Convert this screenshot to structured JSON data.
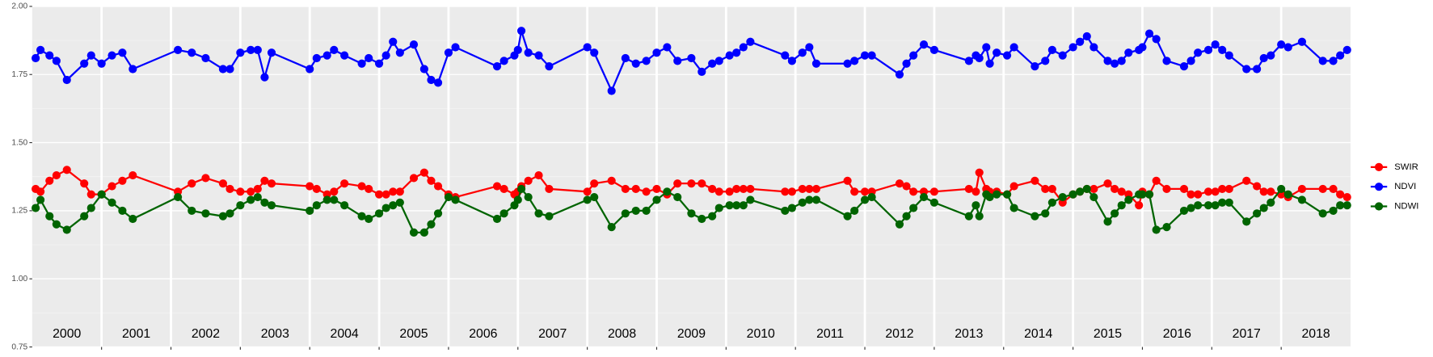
{
  "chart_data": {
    "type": "line",
    "xlim": [
      2000,
      2019
    ],
    "x_boundaries": [
      2001,
      2002,
      2003,
      2004,
      2005,
      2006,
      2007,
      2008,
      2009,
      2010,
      2011,
      2012,
      2013,
      2014,
      2015,
      2016,
      2017,
      2018
    ],
    "xticks": [
      {
        "value": 2000.5,
        "label": "2000"
      },
      {
        "value": 2001.5,
        "label": "2001"
      },
      {
        "value": 2002.5,
        "label": "2002"
      },
      {
        "value": 2003.5,
        "label": "2003"
      },
      {
        "value": 2004.5,
        "label": "2004"
      },
      {
        "value": 2005.5,
        "label": "2005"
      },
      {
        "value": 2006.5,
        "label": "2006"
      },
      {
        "value": 2007.5,
        "label": "2007"
      },
      {
        "value": 2008.5,
        "label": "2008"
      },
      {
        "value": 2009.5,
        "label": "2009"
      },
      {
        "value": 2010.5,
        "label": "2010"
      },
      {
        "value": 2011.5,
        "label": "2011"
      },
      {
        "value": 2012.5,
        "label": "2012"
      },
      {
        "value": 2013.5,
        "label": "2013"
      },
      {
        "value": 2014.5,
        "label": "2014"
      },
      {
        "value": 2015.5,
        "label": "2015"
      },
      {
        "value": 2016.5,
        "label": "2016"
      },
      {
        "value": 2017.5,
        "label": "2017"
      },
      {
        "value": 2018.5,
        "label": "2018"
      }
    ],
    "ylim": [
      0.75,
      2.0
    ],
    "yticks": [
      {
        "value": 0.75,
        "label": "0.75"
      },
      {
        "value": 1.0,
        "label": "1.00"
      },
      {
        "value": 1.25,
        "label": "1.25"
      },
      {
        "value": 1.5,
        "label": "1.50"
      },
      {
        "value": 1.75,
        "label": "1.75"
      },
      {
        "value": 2.0,
        "label": "2.00"
      }
    ],
    "grid": true,
    "legend": "right",
    "x": [
      2000.05,
      2000.12,
      2000.25,
      2000.35,
      2000.5,
      2000.75,
      2000.85,
      2001.0,
      2001.15,
      2001.3,
      2001.45,
      2002.1,
      2002.3,
      2002.5,
      2002.75,
      2002.85,
      2003.0,
      2003.15,
      2003.25,
      2003.35,
      2003.45,
      2004.0,
      2004.1,
      2004.25,
      2004.35,
      2004.5,
      2004.75,
      2004.85,
      2005.0,
      2005.1,
      2005.2,
      2005.3,
      2005.5,
      2005.65,
      2005.75,
      2005.85,
      2006.0,
      2006.1,
      2006.7,
      2006.8,
      2006.95,
      2007.0,
      2007.05,
      2007.15,
      2007.3,
      2007.45,
      2008.0,
      2008.1,
      2008.35,
      2008.55,
      2008.7,
      2008.85,
      2009.0,
      2009.15,
      2009.3,
      2009.5,
      2009.65,
      2009.8,
      2009.9,
      2010.05,
      2010.15,
      2010.25,
      2010.35,
      2010.85,
      2010.95,
      2011.1,
      2011.2,
      2011.3,
      2011.75,
      2011.85,
      2012.0,
      2012.1,
      2012.5,
      2012.6,
      2012.7,
      2012.85,
      2013.0,
      2013.5,
      2013.6,
      2013.65,
      2013.75,
      2013.8,
      2013.9,
      2014.05,
      2014.15,
      2014.45,
      2014.6,
      2014.7,
      2014.85,
      2015.0,
      2015.1,
      2015.2,
      2015.3,
      2015.5,
      2015.6,
      2015.7,
      2015.8,
      2015.95,
      2016.0,
      2016.1,
      2016.2,
      2016.35,
      2016.6,
      2016.7,
      2016.8,
      2016.95,
      2017.05,
      2017.15,
      2017.25,
      2017.5,
      2017.65,
      2017.75,
      2017.85,
      2018.0,
      2018.1,
      2018.3,
      2018.6,
      2018.75,
      2018.85,
      2018.95
    ],
    "series": [
      {
        "name": "SWIR",
        "color": "#ff0000",
        "values": [
          1.33,
          1.32,
          1.36,
          1.38,
          1.4,
          1.35,
          1.31,
          1.31,
          1.34,
          1.36,
          1.38,
          1.32,
          1.35,
          1.37,
          1.35,
          1.33,
          1.32,
          1.32,
          1.33,
          1.36,
          1.35,
          1.34,
          1.33,
          1.31,
          1.32,
          1.35,
          1.34,
          1.33,
          1.31,
          1.31,
          1.32,
          1.32,
          1.37,
          1.39,
          1.36,
          1.34,
          1.31,
          1.3,
          1.34,
          1.33,
          1.31,
          1.32,
          1.34,
          1.36,
          1.38,
          1.33,
          1.32,
          1.35,
          1.36,
          1.33,
          1.33,
          1.32,
          1.33,
          1.31,
          1.35,
          1.35,
          1.35,
          1.33,
          1.32,
          1.32,
          1.33,
          1.33,
          1.33,
          1.32,
          1.32,
          1.33,
          1.33,
          1.33,
          1.36,
          1.32,
          1.32,
          1.32,
          1.35,
          1.34,
          1.32,
          1.32,
          1.32,
          1.33,
          1.32,
          1.39,
          1.33,
          1.32,
          1.32,
          1.31,
          1.34,
          1.36,
          1.33,
          1.33,
          1.28,
          1.31,
          1.32,
          1.33,
          1.33,
          1.35,
          1.33,
          1.32,
          1.31,
          1.27,
          1.32,
          1.31,
          1.36,
          1.33,
          1.33,
          1.31,
          1.31,
          1.32,
          1.32,
          1.33,
          1.33,
          1.36,
          1.34,
          1.32,
          1.32,
          1.31,
          1.3,
          1.33,
          1.33,
          1.33,
          1.31,
          1.3
        ]
      },
      {
        "name": "NDVI",
        "color": "#0000ff",
        "values": [
          1.81,
          1.84,
          1.82,
          1.8,
          1.73,
          1.79,
          1.82,
          1.79,
          1.82,
          1.83,
          1.77,
          1.84,
          1.83,
          1.81,
          1.77,
          1.77,
          1.83,
          1.84,
          1.84,
          1.74,
          1.83,
          1.77,
          1.81,
          1.82,
          1.84,
          1.82,
          1.79,
          1.81,
          1.79,
          1.82,
          1.87,
          1.83,
          1.86,
          1.77,
          1.73,
          1.72,
          1.83,
          1.85,
          1.78,
          1.8,
          1.82,
          1.84,
          1.91,
          1.83,
          1.82,
          1.78,
          1.85,
          1.83,
          1.69,
          1.81,
          1.79,
          1.8,
          1.83,
          1.85,
          1.8,
          1.81,
          1.76,
          1.79,
          1.8,
          1.82,
          1.83,
          1.85,
          1.87,
          1.82,
          1.8,
          1.83,
          1.85,
          1.79,
          1.79,
          1.8,
          1.82,
          1.82,
          1.75,
          1.79,
          1.82,
          1.86,
          1.84,
          1.8,
          1.82,
          1.81,
          1.85,
          1.79,
          1.83,
          1.82,
          1.85,
          1.78,
          1.8,
          1.84,
          1.82,
          1.85,
          1.87,
          1.89,
          1.85,
          1.8,
          1.79,
          1.8,
          1.83,
          1.84,
          1.85,
          1.9,
          1.88,
          1.8,
          1.78,
          1.8,
          1.83,
          1.84,
          1.86,
          1.84,
          1.82,
          1.77,
          1.77,
          1.81,
          1.82,
          1.86,
          1.85,
          1.87,
          1.8,
          1.8,
          1.82,
          1.84
        ]
      },
      {
        "name": "NDWI",
        "color": "#006400",
        "values": [
          1.26,
          1.29,
          1.23,
          1.2,
          1.18,
          1.23,
          1.26,
          1.31,
          1.28,
          1.25,
          1.22,
          1.3,
          1.25,
          1.24,
          1.23,
          1.24,
          1.27,
          1.29,
          1.3,
          1.28,
          1.27,
          1.25,
          1.27,
          1.29,
          1.29,
          1.27,
          1.23,
          1.22,
          1.24,
          1.26,
          1.27,
          1.28,
          1.17,
          1.17,
          1.2,
          1.24,
          1.3,
          1.29,
          1.22,
          1.24,
          1.27,
          1.29,
          1.33,
          1.3,
          1.24,
          1.23,
          1.29,
          1.3,
          1.19,
          1.24,
          1.25,
          1.25,
          1.29,
          1.32,
          1.3,
          1.24,
          1.22,
          1.23,
          1.26,
          1.27,
          1.27,
          1.27,
          1.29,
          1.25,
          1.26,
          1.28,
          1.29,
          1.29,
          1.23,
          1.25,
          1.29,
          1.3,
          1.2,
          1.23,
          1.26,
          1.3,
          1.28,
          1.23,
          1.27,
          1.23,
          1.31,
          1.3,
          1.31,
          1.31,
          1.26,
          1.23,
          1.24,
          1.28,
          1.3,
          1.31,
          1.32,
          1.33,
          1.3,
          1.21,
          1.24,
          1.27,
          1.29,
          1.31,
          1.31,
          1.31,
          1.18,
          1.19,
          1.25,
          1.26,
          1.27,
          1.27,
          1.27,
          1.28,
          1.28,
          1.21,
          1.24,
          1.26,
          1.28,
          1.33,
          1.31,
          1.29,
          1.24,
          1.25,
          1.27,
          1.27
        ]
      }
    ]
  }
}
